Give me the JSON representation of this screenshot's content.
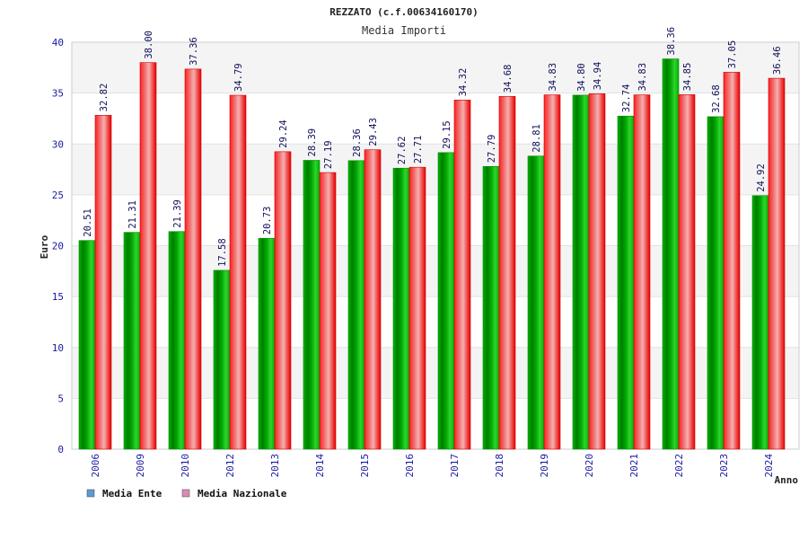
{
  "chart_data": {
    "type": "bar",
    "title": "REZZATO (c.f.00634160170)",
    "subtitle": "Media Importi",
    "xlabel": "Anno",
    "ylabel": "Euro",
    "ylim": [
      0,
      40
    ],
    "yticks": [
      0,
      5,
      10,
      15,
      20,
      25,
      30,
      35,
      40
    ],
    "grid": true,
    "legend_position": "bottom-left",
    "categories": [
      "2006",
      "2009",
      "2010",
      "2012",
      "2013",
      "2014",
      "2015",
      "2016",
      "2017",
      "2018",
      "2019",
      "2020",
      "2021",
      "2022",
      "2023",
      "2024"
    ],
    "series": [
      {
        "name": "Media Ente",
        "legend_color": "#5b9bd5",
        "color": "#00aa00",
        "values": [
          20.51,
          21.31,
          21.39,
          17.58,
          20.73,
          28.39,
          28.36,
          27.62,
          29.15,
          27.79,
          28.81,
          34.8,
          32.74,
          38.36,
          32.68,
          24.92
        ],
        "labels": [
          "20.51",
          "21.31",
          "21.39",
          "17.58",
          "20.73",
          "28.39",
          "28.36",
          "27.62",
          "29.15",
          "27.79",
          "28.81",
          "34.80",
          "32.74",
          "38.36",
          "32.68",
          "24.92"
        ]
      },
      {
        "name": "Media Nazionale",
        "legend_color": "#d98cb3",
        "color": "#ee1111",
        "values": [
          32.82,
          38.0,
          37.36,
          34.79,
          29.24,
          27.19,
          29.43,
          27.71,
          34.32,
          34.68,
          34.83,
          34.94,
          34.83,
          34.85,
          37.05,
          36.46
        ],
        "labels": [
          "32.82",
          "38.00",
          "37.36",
          "34.79",
          "29.24",
          "27.19",
          "29.43",
          "27.71",
          "34.32",
          "34.68",
          "34.83",
          "34.94",
          "34.83",
          "34.85",
          "37.05",
          "36.46"
        ]
      }
    ]
  }
}
